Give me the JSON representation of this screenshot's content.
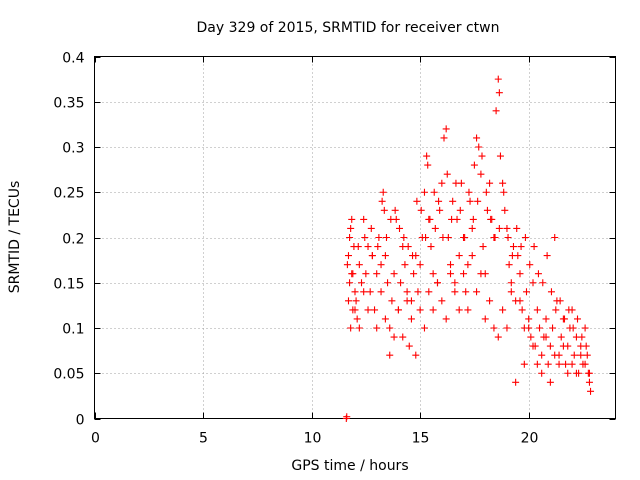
{
  "chart_data": {
    "type": "scatter",
    "title": "Day 329 of 2015, SRMTID for receiver ctwn",
    "xlabel": "GPS time / hours",
    "ylabel": "SRMTID / TECUs",
    "xlim": [
      0,
      24
    ],
    "ylim": [
      0,
      0.4
    ],
    "x_ticks": [
      0,
      5,
      10,
      15,
      20
    ],
    "y_ticks": [
      0,
      0.05,
      0.1,
      0.15,
      0.2,
      0.25,
      0.3,
      0.35,
      0.4
    ],
    "x_tick_labels": [
      "0",
      "5",
      "10",
      "15",
      "20"
    ],
    "y_tick_labels": [
      "0",
      "0.05",
      "0.1",
      "0.15",
      "0.2",
      "0.25",
      "0.3",
      "0.35",
      "0.4"
    ],
    "grid": true,
    "marker": "plus",
    "marker_color": "#ff0000",
    "series": [
      {
        "name": "SRMTID",
        "x": [
          11.6,
          11.62,
          11.65,
          11.7,
          11.75,
          11.8,
          11.85,
          11.9,
          11.95,
          12.0,
          12.05,
          12.1,
          12.2,
          12.3,
          12.4,
          12.5,
          12.6,
          12.7,
          12.8,
          12.9,
          13.0,
          13.1,
          13.2,
          13.3,
          13.35,
          13.4,
          13.5,
          13.6,
          13.7,
          13.8,
          13.9,
          14.0,
          14.1,
          14.2,
          14.3,
          14.4,
          14.5,
          14.6,
          14.7,
          14.8,
          14.9,
          15.0,
          15.1,
          15.2,
          15.3,
          15.35,
          15.4,
          15.5,
          15.6,
          15.7,
          15.8,
          15.9,
          16.0,
          16.1,
          16.2,
          16.3,
          16.4,
          16.5,
          16.6,
          16.7,
          16.8,
          16.9,
          17.0,
          17.1,
          17.2,
          17.3,
          17.4,
          17.5,
          17.6,
          17.7,
          17.8,
          17.9,
          18.0,
          18.1,
          18.2,
          18.3,
          18.4,
          18.5,
          18.6,
          18.65,
          18.7,
          18.8,
          18.9,
          19.0,
          19.1,
          19.2,
          19.3,
          19.4,
          19.5,
          19.6,
          19.7,
          19.8,
          19.9,
          20.0,
          20.1,
          20.2,
          20.3,
          20.4,
          20.5,
          20.6,
          20.7,
          20.8,
          20.9,
          21.0,
          21.1,
          21.2,
          21.3,
          21.4,
          21.5,
          21.6,
          21.7,
          21.8,
          21.9,
          22.0,
          22.1,
          22.2,
          22.3,
          22.4,
          22.5,
          22.6,
          22.7,
          22.75,
          22.8,
          22.85,
          11.7,
          11.8,
          11.9,
          12.0,
          12.2,
          12.4,
          12.6,
          12.8,
          13.0,
          13.2,
          13.4,
          13.6,
          13.8,
          14.0,
          14.2,
          14.4,
          14.6,
          14.8,
          15.0,
          15.2,
          15.4,
          15.6,
          15.8,
          16.0,
          16.2,
          16.4,
          16.6,
          16.8,
          17.0,
          17.2,
          17.4,
          17.6,
          17.8,
          18.0,
          18.2,
          18.4,
          18.6,
          18.8,
          19.0,
          19.2,
          19.4,
          19.6,
          19.8,
          20.0,
          20.2,
          20.4,
          20.6,
          20.8,
          21.0,
          21.2,
          21.4,
          21.6,
          21.8,
          22.0,
          22.2,
          22.4,
          22.6,
          22.8,
          11.75,
          11.85,
          12.15,
          12.45,
          12.75,
          13.05,
          13.25,
          13.45,
          13.65,
          13.85,
          14.05,
          14.25,
          14.45,
          14.65,
          14.85,
          15.05,
          15.25,
          15.45,
          15.65,
          15.85,
          16.05,
          16.25,
          16.45,
          16.65,
          16.85,
          17.05,
          17.25,
          17.45,
          17.65,
          17.85,
          18.05,
          18.25,
          18.45,
          18.65,
          18.85,
          19.05,
          19.25,
          19.45,
          19.65,
          19.85,
          20.05,
          20.25,
          20.45,
          20.65,
          20.85,
          21.05,
          21.25,
          21.45,
          21.65,
          21.85,
          22.05,
          22.25,
          22.45,
          22.65
        ],
        "y": [
          0.0,
          0.002,
          0.17,
          0.18,
          0.15,
          0.21,
          0.16,
          0.12,
          0.19,
          0.14,
          0.13,
          0.11,
          0.17,
          0.15,
          0.22,
          0.16,
          0.19,
          0.14,
          0.18,
          0.12,
          0.16,
          0.2,
          0.17,
          0.25,
          0.23,
          0.18,
          0.15,
          0.1,
          0.13,
          0.16,
          0.22,
          0.12,
          0.15,
          0.19,
          0.17,
          0.14,
          0.08,
          0.13,
          0.16,
          0.18,
          0.14,
          0.17,
          0.2,
          0.25,
          0.29,
          0.28,
          0.22,
          0.19,
          0.16,
          0.21,
          0.15,
          0.23,
          0.26,
          0.31,
          0.32,
          0.2,
          0.17,
          0.24,
          0.15,
          0.22,
          0.18,
          0.26,
          0.2,
          0.14,
          0.17,
          0.24,
          0.21,
          0.28,
          0.31,
          0.3,
          0.27,
          0.19,
          0.16,
          0.23,
          0.26,
          0.22,
          0.2,
          0.34,
          0.375,
          0.36,
          0.29,
          0.26,
          0.23,
          0.21,
          0.17,
          0.15,
          0.19,
          0.13,
          0.18,
          0.16,
          0.12,
          0.1,
          0.14,
          0.11,
          0.09,
          0.15,
          0.08,
          0.12,
          0.1,
          0.07,
          0.09,
          0.11,
          0.06,
          0.08,
          0.1,
          0.2,
          0.13,
          0.07,
          0.09,
          0.11,
          0.06,
          0.08,
          0.1,
          0.12,
          0.07,
          0.09,
          0.05,
          0.08,
          0.06,
          0.1,
          0.07,
          0.05,
          0.04,
          0.03,
          0.13,
          0.1,
          0.16,
          0.12,
          0.1,
          0.14,
          0.12,
          0.18,
          0.1,
          0.14,
          0.11,
          0.07,
          0.09,
          0.12,
          0.09,
          0.13,
          0.11,
          0.07,
          0.12,
          0.1,
          0.14,
          0.12,
          0.15,
          0.13,
          0.11,
          0.16,
          0.14,
          0.12,
          0.16,
          0.12,
          0.18,
          0.14,
          0.16,
          0.11,
          0.13,
          0.1,
          0.09,
          0.12,
          0.1,
          0.14,
          0.04,
          0.13,
          0.06,
          0.1,
          0.08,
          0.06,
          0.05,
          0.09,
          0.04,
          0.07,
          0.06,
          0.08,
          0.05,
          0.06,
          0.05,
          0.07,
          0.06,
          0.05,
          0.2,
          0.22,
          0.19,
          0.2,
          0.21,
          0.19,
          0.24,
          0.2,
          0.22,
          0.23,
          0.21,
          0.2,
          0.19,
          0.18,
          0.24,
          0.23,
          0.2,
          0.22,
          0.25,
          0.24,
          0.2,
          0.27,
          0.22,
          0.26,
          0.23,
          0.2,
          0.25,
          0.22,
          0.24,
          0.29,
          0.25,
          0.22,
          0.2,
          0.21,
          0.25,
          0.2,
          0.18,
          0.21,
          0.19,
          0.2,
          0.17,
          0.19,
          0.16,
          0.15,
          0.18,
          0.14,
          0.12,
          0.13,
          0.11,
          0.12,
          0.1,
          0.11,
          0.09,
          0.08
        ]
      }
    ]
  }
}
